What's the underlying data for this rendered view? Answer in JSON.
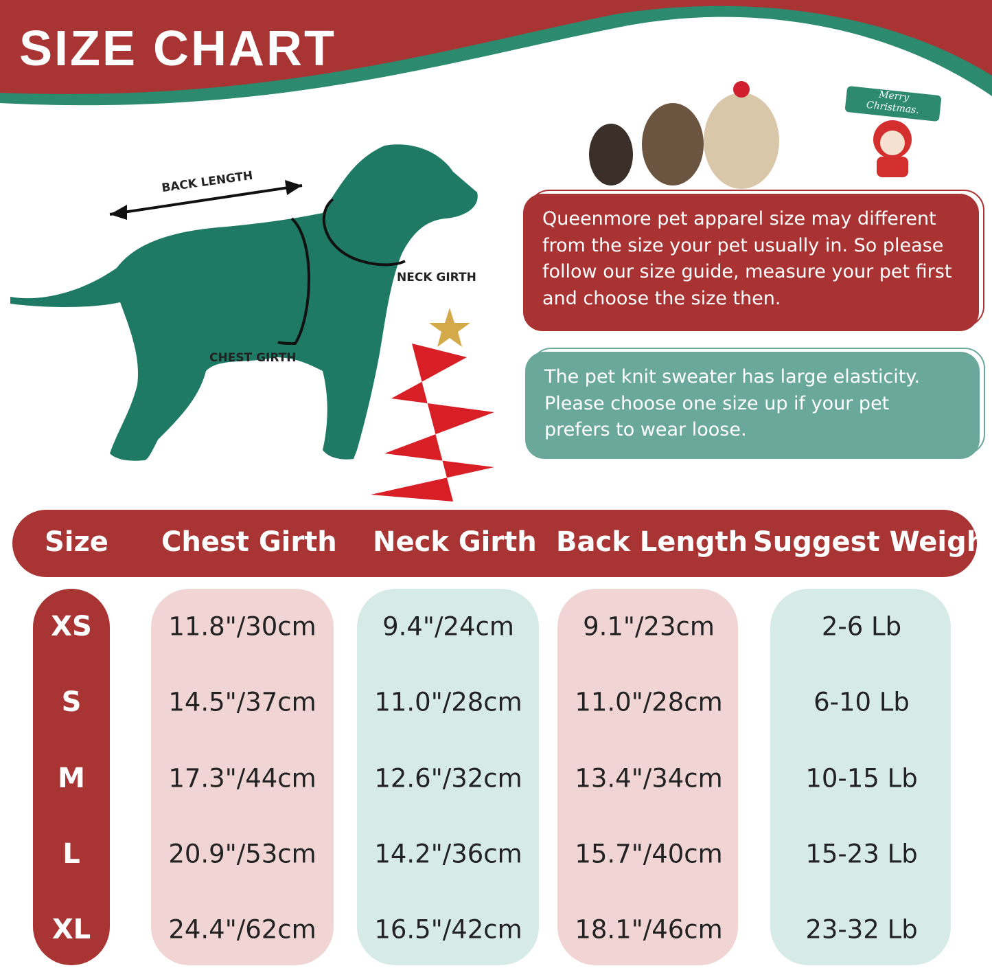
{
  "header": {
    "title": "SIZE CHART"
  },
  "diagram": {
    "back_length_label": "BACK LENGTH",
    "neck_girth_label": "NECK GIRTH",
    "chest_girth_label": "CHEST GIRTH"
  },
  "decoration": {
    "sign_text_line1": "Merry",
    "sign_text_line2": "Christmas."
  },
  "notes": {
    "fit_note": "Queenmore pet apparel size may different from the size your pet usually in. So please follow our size guide, measure your pet first and choose the size then.",
    "elasticity_note": "The pet knit sweater has large elasticity. Please choose one size up if your pet prefers to wear loose."
  },
  "colors": {
    "red": "#a93434",
    "green": "#1e7a64",
    "teal": "#6aa89c",
    "pink_pill": "#f1d4d4",
    "teal_pill": "#d7ebe6"
  },
  "table": {
    "headers": [
      "Size",
      "Chest Girth",
      "Neck Girth",
      "Back Length",
      "Suggest Weight"
    ],
    "rows": [
      {
        "size": "XS",
        "chest": "11.8\"/30cm",
        "neck": "9.4\"/24cm",
        "back": "9.1\"/23cm",
        "weight": "2-6 Lb"
      },
      {
        "size": "S",
        "chest": "14.5\"/37cm",
        "neck": "11.0\"/28cm",
        "back": "11.0\"/28cm",
        "weight": "6-10 Lb"
      },
      {
        "size": "M",
        "chest": "17.3\"/44cm",
        "neck": "12.6\"/32cm",
        "back": "13.4\"/34cm",
        "weight": "10-15 Lb"
      },
      {
        "size": "L",
        "chest": "20.9\"/53cm",
        "neck": "14.2\"/36cm",
        "back": "15.7\"/40cm",
        "weight": "15-23 Lb"
      },
      {
        "size": "XL",
        "chest": "24.4\"/62cm",
        "neck": "16.5\"/42cm",
        "back": "18.1\"/46cm",
        "weight": "23-32 Lb"
      }
    ]
  }
}
